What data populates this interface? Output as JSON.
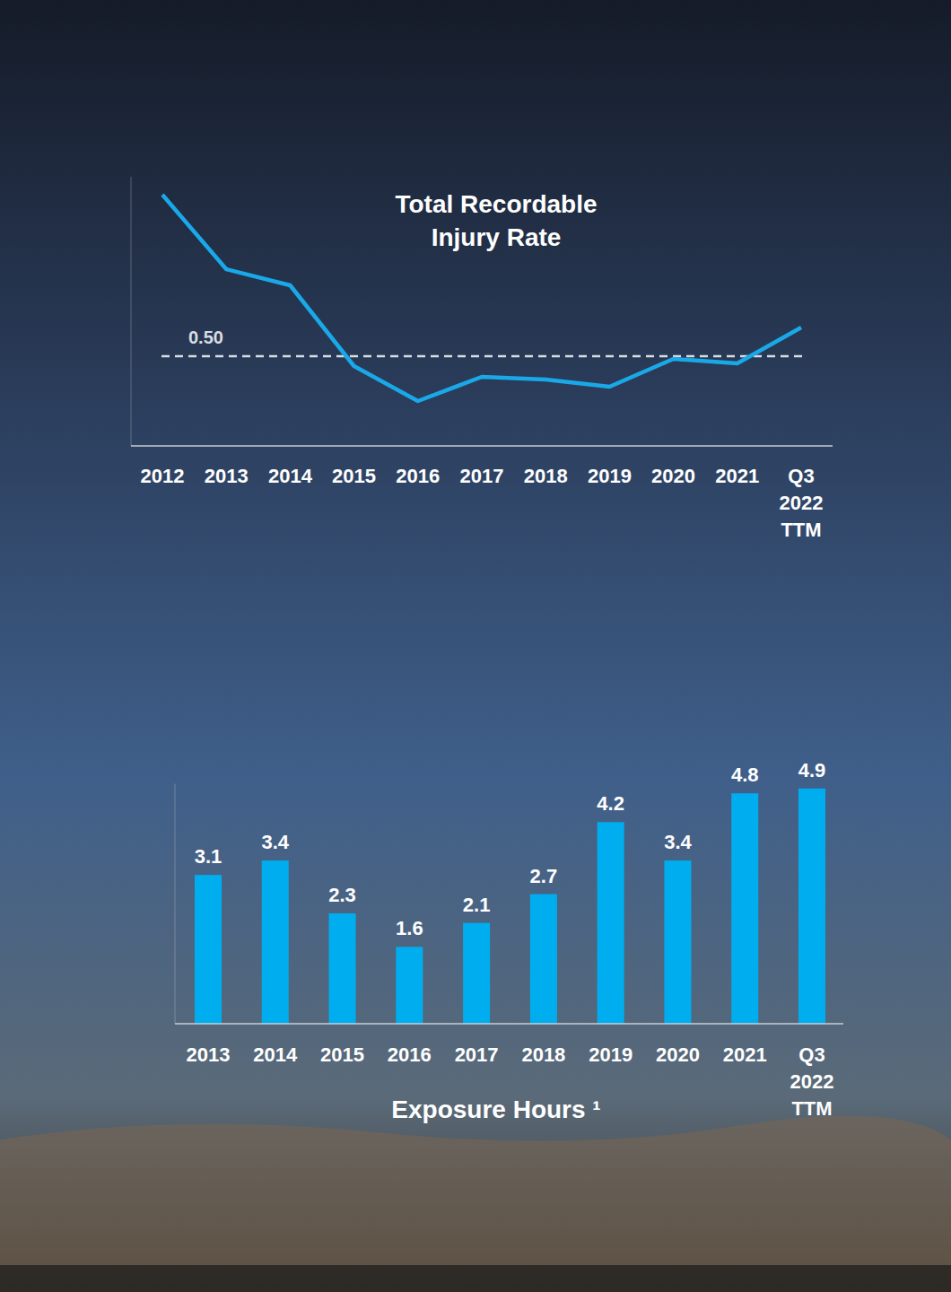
{
  "chart_data": [
    {
      "type": "line",
      "title": "Total Recordable Injury Rate",
      "categories": [
        "2012",
        "2013",
        "2014",
        "2015",
        "2016",
        "2017",
        "2018",
        "2019",
        "2020",
        "2021",
        "Q3 2022 TTM"
      ],
      "values": [
        1.4,
        0.985,
        0.895,
        0.445,
        0.25,
        0.385,
        0.37,
        0.33,
        0.485,
        0.46,
        0.66
      ],
      "color": "#1aa9e8",
      "ylim": [
        0,
        1.5
      ],
      "yticks": [
        {
          "value": 0.5,
          "label": "0.50"
        }
      ],
      "grid": true
    },
    {
      "type": "bar",
      "title": "Exposure Hours ¹",
      "categories": [
        "2013",
        "2014",
        "2015",
        "2016",
        "2017",
        "2018",
        "2019",
        "2020",
        "2021",
        "Q3 2022 TTM"
      ],
      "values": [
        3.1,
        3.4,
        2.3,
        1.6,
        2.1,
        2.7,
        4.2,
        3.4,
        4.8,
        4.9
      ],
      "color": "#00aeef",
      "ylim": [
        0,
        5
      ],
      "data_labels": true,
      "tick_labels": "x"
    }
  ]
}
